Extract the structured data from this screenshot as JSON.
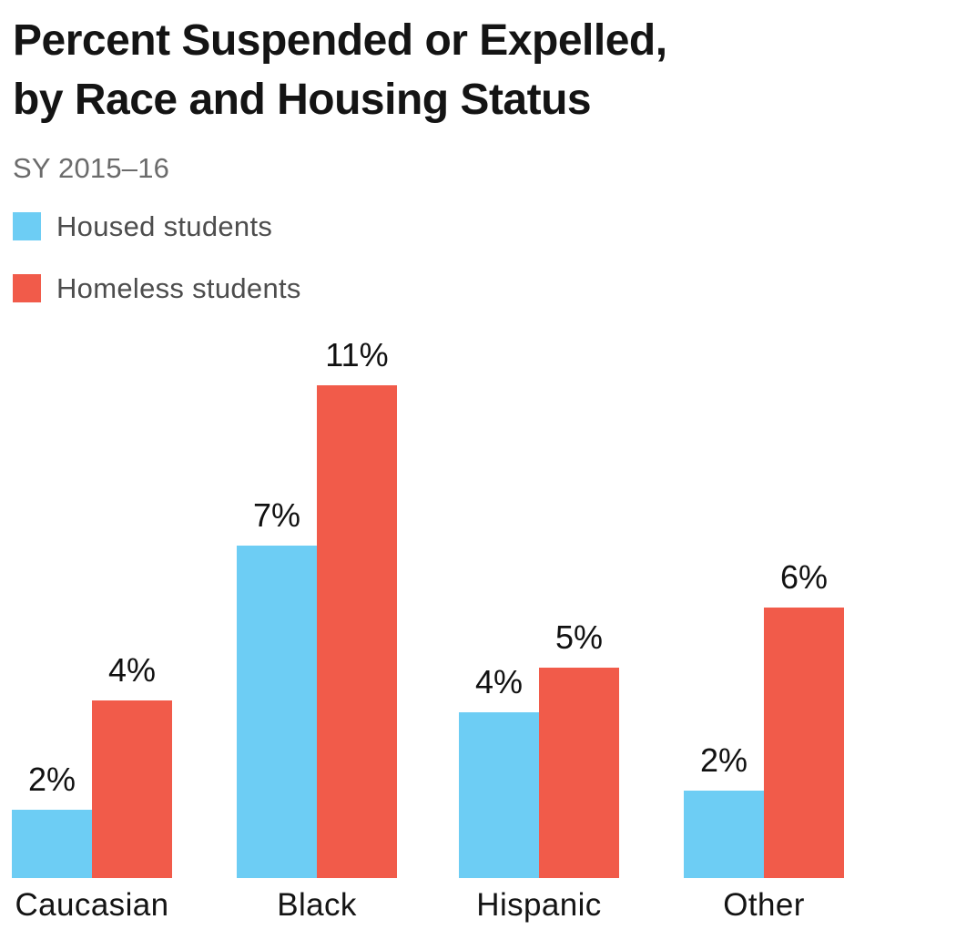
{
  "header": {
    "title_lines": [
      "Percent Suspended or Expelled,",
      "by Race and Housing Status"
    ],
    "subtitle": "SY 2015–16"
  },
  "chart_data": {
    "type": "bar",
    "title": "Percent Suspended or Expelled, by Race and Housing Status",
    "subtitle": "SY 2015–16",
    "categories": [
      "Caucasian",
      "Black",
      "Hispanic",
      "Other"
    ],
    "series": [
      {
        "name": "Housed students",
        "color": "#6dcdf4",
        "values": [
          2,
          7,
          4,
          2
        ],
        "labels": [
          "2%",
          "7%",
          "4%",
          "2%"
        ],
        "values_precise": [
          1.52,
          7.37,
          3.68,
          1.94
        ]
      },
      {
        "name": "Homeless students",
        "color": "#f15b4a",
        "values": [
          4,
          11,
          5,
          6
        ],
        "labels": [
          "4%",
          "11%",
          "5%",
          "6%"
        ],
        "values_precise": [
          3.94,
          10.93,
          4.67,
          6.0
        ]
      }
    ],
    "ylabel": "",
    "xlabel": "",
    "ylim": [
      0,
      12.2
    ],
    "grid": false,
    "axes_visible": false,
    "legend_position": "top-left",
    "data_labels": true
  }
}
